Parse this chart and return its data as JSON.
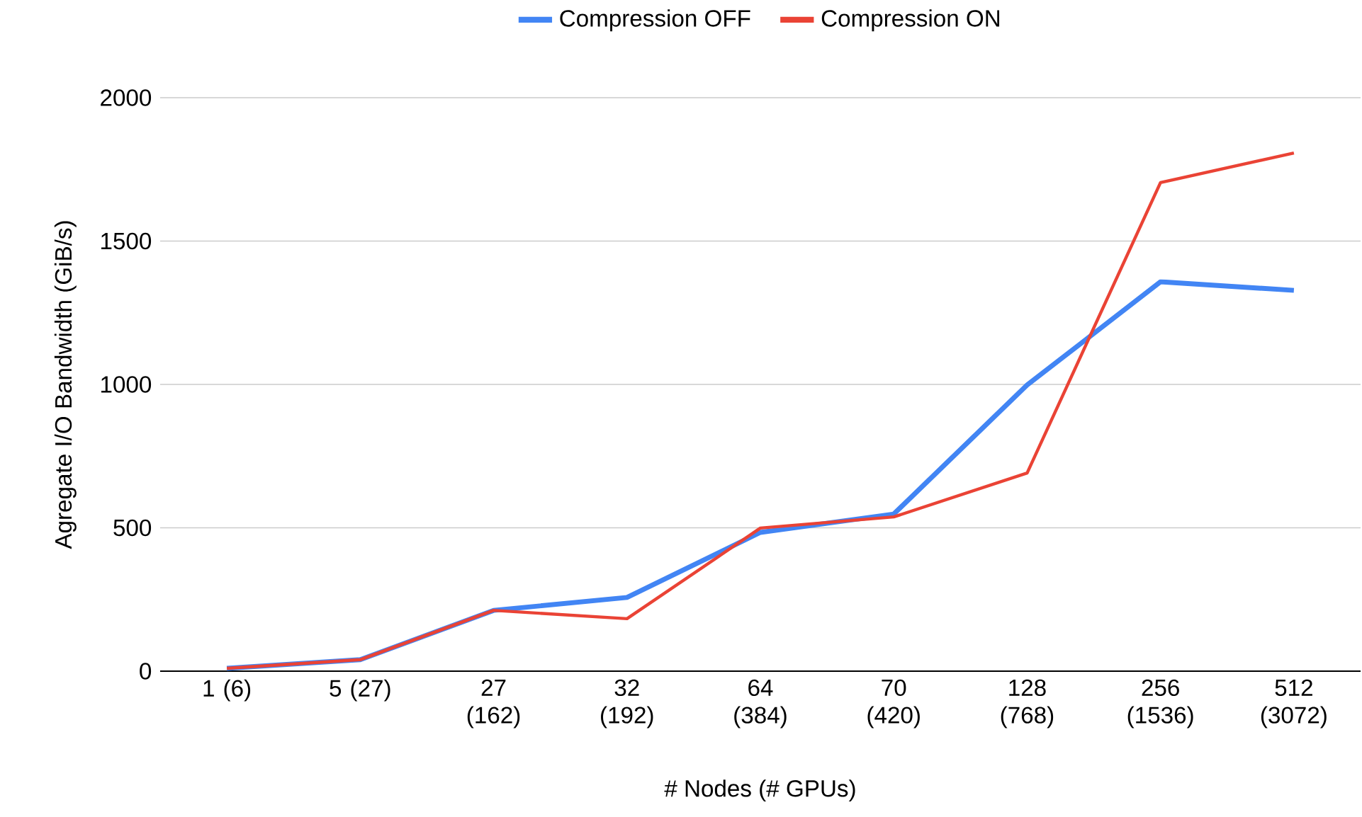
{
  "chart_data": {
    "type": "line",
    "categories": [
      "1 (6)",
      "5 (27)",
      "27 (162)",
      "32 (192)",
      "64 (384)",
      "70 (420)",
      "128 (768)",
      "256 (1536)",
      "512 (3072)"
    ],
    "series": [
      {
        "name": "Compression OFF",
        "color": "#4285f4",
        "values": [
          10,
          40,
          212,
          257,
          484,
          548,
          998,
          1358,
          1328
        ]
      },
      {
        "name": "Compression ON",
        "color": "#ea4335",
        "values": [
          10,
          40,
          212,
          183,
          499,
          538,
          691,
          1704,
          1807
        ]
      }
    ],
    "xlabel": "# Nodes (# GPUs)",
    "ylabel": "Agregate I/O Bandwidth (GiB/s)",
    "ylim": [
      0,
      2000
    ],
    "yticks": [
      0,
      500,
      1000,
      1500,
      2000
    ],
    "grid": "y",
    "legend": "top"
  }
}
